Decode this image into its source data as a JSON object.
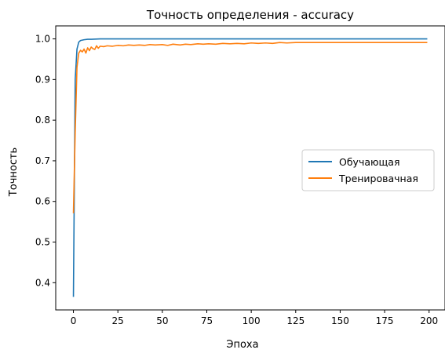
{
  "chart_data": {
    "type": "line",
    "title": "Точность определения - accuracy",
    "xlabel": "Эпоха",
    "ylabel": "Точность",
    "xlim": [
      -9.95,
      208.95
    ],
    "ylim": [
      0.333,
      1.032
    ],
    "xticks": [
      0,
      25,
      50,
      75,
      100,
      125,
      150,
      175,
      200
    ],
    "yticks": [
      0.4,
      0.5,
      0.6,
      0.7,
      0.8,
      0.9,
      1.0
    ],
    "ytick_labels": [
      "0.4",
      "0.5",
      "0.6",
      "0.7",
      "0.8",
      "0.9",
      "1.0"
    ],
    "grid": false,
    "legend_position": "center-right",
    "series": [
      {
        "name": "Обучающая",
        "color": "#1f77b4",
        "points": [
          [
            0,
            0.365
          ],
          [
            1,
            0.9
          ],
          [
            2,
            0.975
          ],
          [
            3,
            0.992
          ],
          [
            4,
            0.996
          ],
          [
            5,
            0.997
          ],
          [
            6,
            0.998
          ],
          [
            8,
            0.999
          ],
          [
            10,
            0.999
          ],
          [
            15,
            1.0
          ],
          [
            25,
            1.0
          ],
          [
            50,
            1.0
          ],
          [
            75,
            1.0
          ],
          [
            100,
            1.0
          ],
          [
            125,
            1.0
          ],
          [
            150,
            1.0
          ],
          [
            175,
            1.0
          ],
          [
            199,
            1.0
          ]
        ]
      },
      {
        "name": "Тренировачная",
        "color": "#ff7f0e",
        "points": [
          [
            0,
            0.571
          ],
          [
            1,
            0.77
          ],
          [
            2,
            0.93
          ],
          [
            3,
            0.965
          ],
          [
            4,
            0.972
          ],
          [
            5,
            0.968
          ],
          [
            6,
            0.975
          ],
          [
            7,
            0.965
          ],
          [
            8,
            0.978
          ],
          [
            9,
            0.971
          ],
          [
            10,
            0.98
          ],
          [
            11,
            0.976
          ],
          [
            12,
            0.974
          ],
          [
            13,
            0.983
          ],
          [
            14,
            0.977
          ],
          [
            15,
            0.982
          ],
          [
            17,
            0.981
          ],
          [
            19,
            0.983
          ],
          [
            22,
            0.982
          ],
          [
            25,
            0.984
          ],
          [
            28,
            0.983
          ],
          [
            31,
            0.985
          ],
          [
            34,
            0.984
          ],
          [
            37,
            0.985
          ],
          [
            40,
            0.984
          ],
          [
            43,
            0.986
          ],
          [
            46,
            0.985
          ],
          [
            50,
            0.986
          ],
          [
            53,
            0.984
          ],
          [
            56,
            0.987
          ],
          [
            60,
            0.985
          ],
          [
            63,
            0.987
          ],
          [
            66,
            0.986
          ],
          [
            70,
            0.988
          ],
          [
            73,
            0.987
          ],
          [
            76,
            0.988
          ],
          [
            80,
            0.987
          ],
          [
            84,
            0.989
          ],
          [
            88,
            0.988
          ],
          [
            92,
            0.989
          ],
          [
            96,
            0.988
          ],
          [
            100,
            0.99
          ],
          [
            104,
            0.989
          ],
          [
            108,
            0.99
          ],
          [
            112,
            0.989
          ],
          [
            116,
            0.991
          ],
          [
            120,
            0.99
          ],
          [
            125,
            0.991
          ],
          [
            150,
            0.991
          ],
          [
            175,
            0.991
          ],
          [
            199,
            0.991
          ]
        ]
      }
    ]
  }
}
